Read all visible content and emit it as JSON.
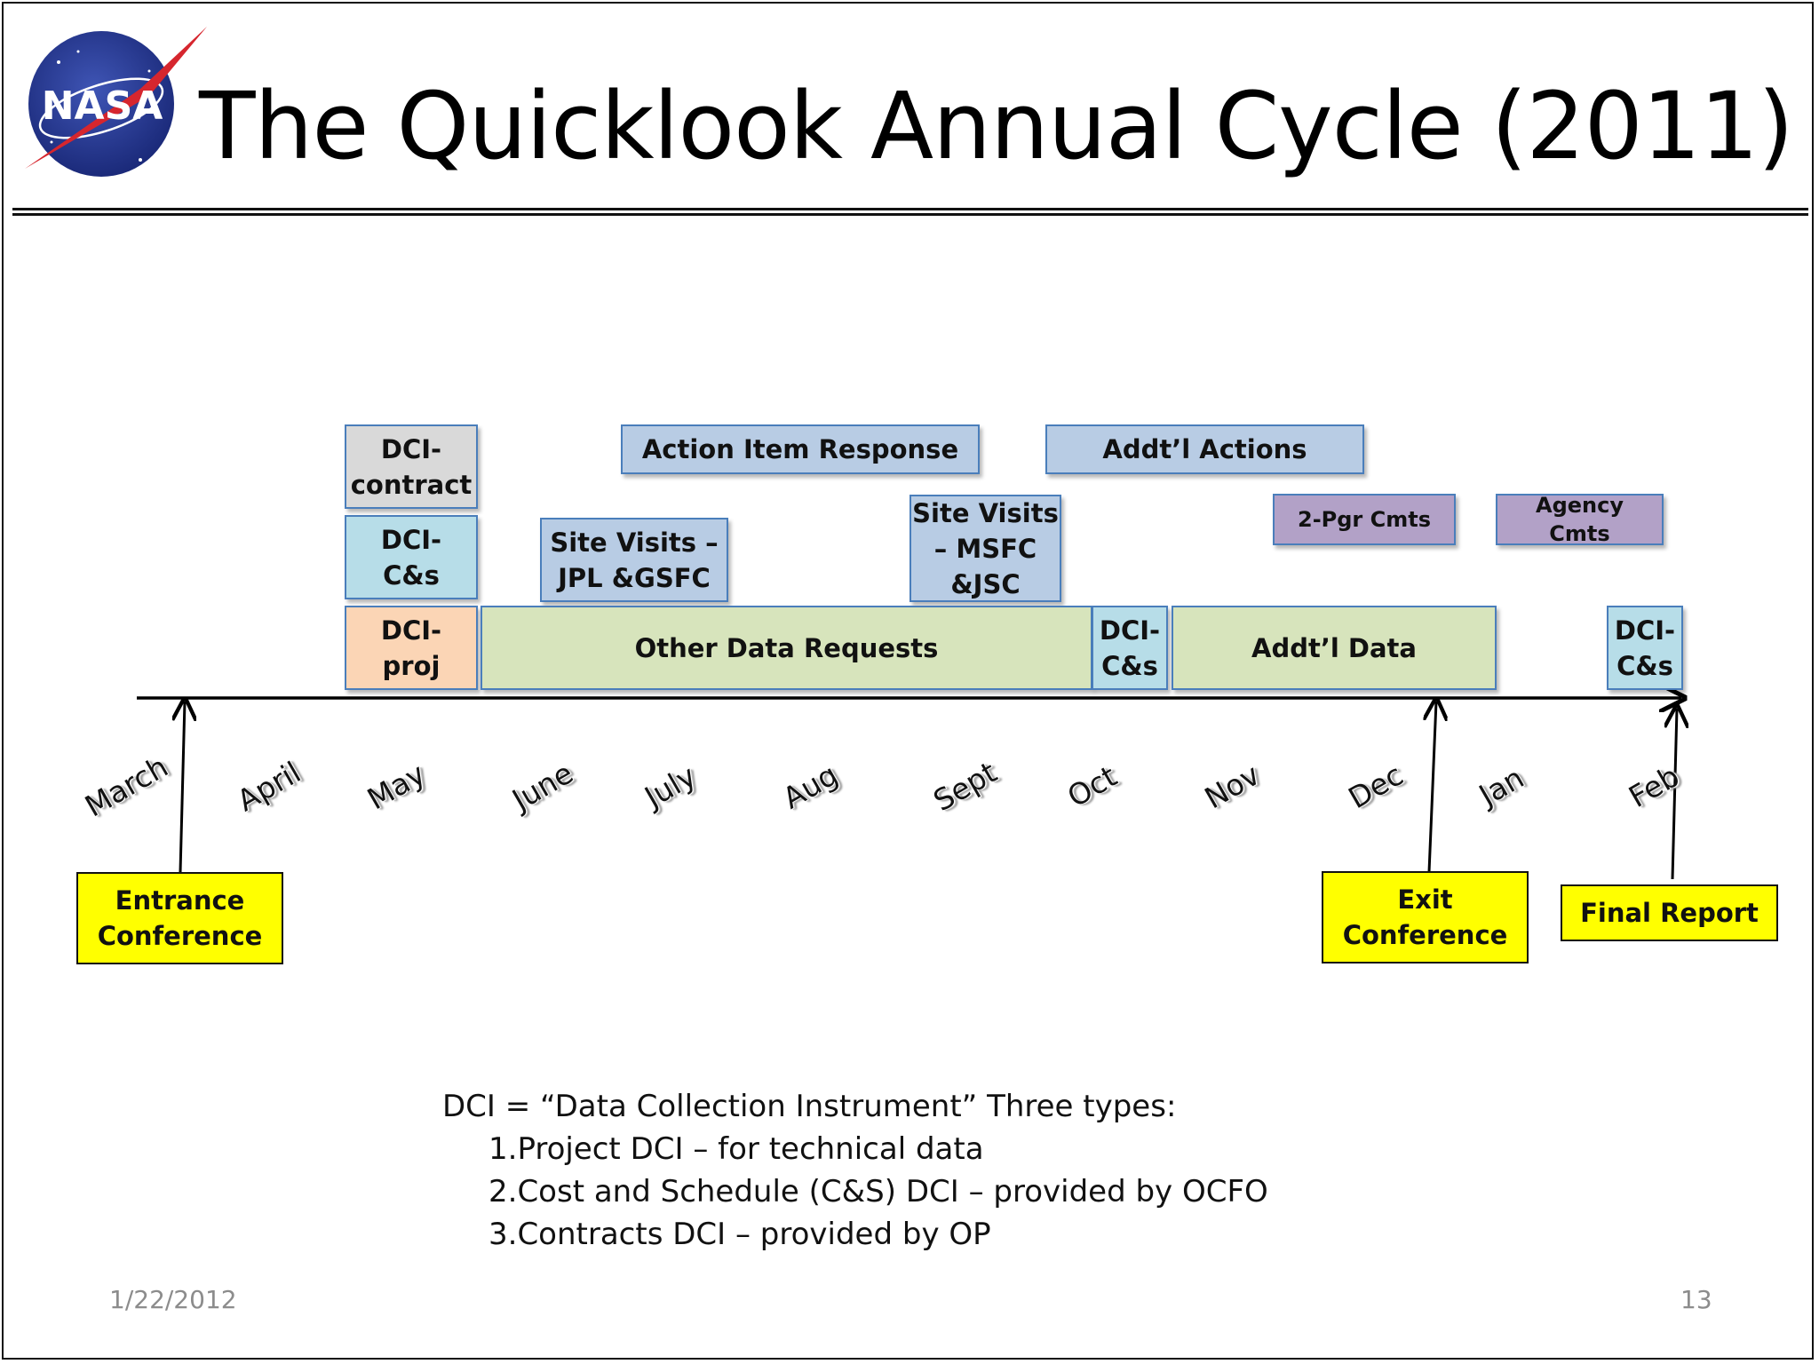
{
  "slide": {
    "logo_text": "NASA",
    "title": "The Quicklook Annual Cycle (2011)",
    "date": "1/22/2012",
    "page_number": "13"
  },
  "timeline": {
    "months": [
      "March",
      "April",
      "May",
      "June",
      "July",
      "Aug",
      "Sept",
      "Oct",
      "Nov",
      "Dec",
      "Jan",
      "Feb"
    ],
    "boxes": [
      {
        "id": "dci-contract",
        "label": "DCI-\ncontract",
        "color": "#d9d9d9"
      },
      {
        "id": "dci-cs-may",
        "label": "DCI-\nC&s",
        "color": "#b7dde8"
      },
      {
        "id": "dci-proj",
        "label": "DCI-\nproj",
        "color": "#fbd5b5"
      },
      {
        "id": "action-item-response",
        "label": "Action Item Response",
        "color": "#b8cce4"
      },
      {
        "id": "addtl-actions",
        "label": "Addt’l Actions",
        "color": "#b8cce4"
      },
      {
        "id": "site-visits-jpl",
        "label": "Site Visits –\nJPL &GSFC",
        "color": "#b8cce4"
      },
      {
        "id": "site-visits-msfc",
        "label": "Site Visits\n– MSFC\n&JSC",
        "color": "#b8cce4"
      },
      {
        "id": "two-pgr-cmts",
        "label": "2-Pgr Cmts",
        "color": "#b2a1c7"
      },
      {
        "id": "agency-cmts",
        "label": "Agency\nCmts",
        "color": "#b2a1c7"
      },
      {
        "id": "other-data-requests",
        "label": "Other Data Requests",
        "color": "#d7e4bc"
      },
      {
        "id": "dci-cs-oct",
        "label": "DCI-\nC&s",
        "color": "#b7dde8"
      },
      {
        "id": "addtl-data",
        "label": "Addt’l Data",
        "color": "#d7e4bc"
      },
      {
        "id": "dci-cs-feb",
        "label": "DCI-\nC&s",
        "color": "#b7dde8"
      }
    ],
    "milestones": [
      {
        "id": "entrance-conference",
        "label": "Entrance\nConference"
      },
      {
        "id": "exit-conference",
        "label": "Exit\nConference"
      },
      {
        "id": "final-report",
        "label": "Final Report"
      }
    ]
  },
  "legend": {
    "intro": "DCI = “Data Collection Instrument” Three types:",
    "items": [
      "1.Project DCI – for technical data",
      "2.Cost and Schedule (C&S) DCI – provided by OCFO",
      "3.Contracts DCI – provided by OP"
    ]
  }
}
